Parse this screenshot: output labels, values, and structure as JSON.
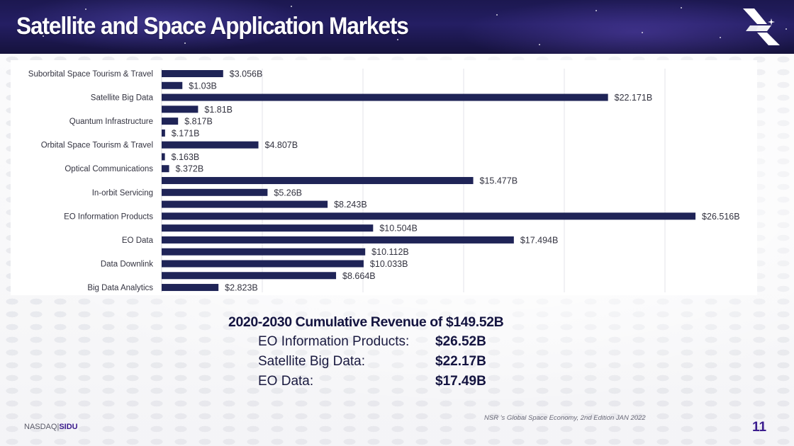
{
  "header": {
    "title": "Satellite and Space Application Markets",
    "logo_icon": "brand-x-logo-icon"
  },
  "chart_data": {
    "type": "bar",
    "orientation": "horizontal",
    "title": "",
    "xlabel": "",
    "ylabel": "",
    "xlim": [
      0,
      27.5
    ],
    "grid": true,
    "gridline_step": 5,
    "bar_color": "#1f2457",
    "units": "USD billions",
    "bars": [
      {
        "category": "Suborbital Space Tourism & Travel",
        "value": 3.056,
        "label": "$3.056B"
      },
      {
        "category": "",
        "value": 1.03,
        "label": "$1.03B"
      },
      {
        "category": "Satellite Big Data",
        "value": 22.171,
        "label": "$22.171B"
      },
      {
        "category": "",
        "value": 1.81,
        "label": "$1.81B"
      },
      {
        "category": "Quantum Infrastructure",
        "value": 0.817,
        "label": "$.817B"
      },
      {
        "category": "",
        "value": 0.171,
        "label": "$.171B"
      },
      {
        "category": "Orbital Space Tourism & Travel",
        "value": 4.807,
        "label": "$4.807B"
      },
      {
        "category": "",
        "value": 0.163,
        "label": "$.163B"
      },
      {
        "category": "Optical Communications",
        "value": 0.372,
        "label": "$.372B"
      },
      {
        "category": "",
        "value": 15.477,
        "label": "$15.477B"
      },
      {
        "category": "In-orbit Servicing",
        "value": 5.26,
        "label": "$5.26B"
      },
      {
        "category": "",
        "value": 8.243,
        "label": "$8.243B"
      },
      {
        "category": "EO Information Products",
        "value": 26.516,
        "label": "$26.516B"
      },
      {
        "category": "",
        "value": 10.504,
        "label": "$10.504B"
      },
      {
        "category": "EO Data",
        "value": 17.494,
        "label": "$17.494B"
      },
      {
        "category": "",
        "value": 10.112,
        "label": "$10.112B"
      },
      {
        "category": "Data Downlink",
        "value": 10.033,
        "label": "$10.033B"
      },
      {
        "category": "",
        "value": 8.664,
        "label": "$8.664B"
      },
      {
        "category": "Big Data Analytics",
        "value": 2.823,
        "label": "$2.823B"
      }
    ]
  },
  "summary": {
    "title": "2020-2030 Cumulative Revenue of $149.52B",
    "rows": [
      {
        "label": "EO Information Products:",
        "value": "$26.52B"
      },
      {
        "label": "Satellite Big Data:",
        "value": "$22.17B"
      },
      {
        "label": "EO Data:",
        "value": "$17.49B"
      }
    ]
  },
  "source": "NSR 's Global Space Economy, 2nd Edition  JAN 2022",
  "footer": {
    "exchange": "NASDAQ|",
    "ticker": "SIDU",
    "page_number": "11"
  },
  "colors": {
    "header_bg": "#1f1a5a",
    "bar": "#1f2457",
    "accent_purple": "#3b1c8e"
  }
}
